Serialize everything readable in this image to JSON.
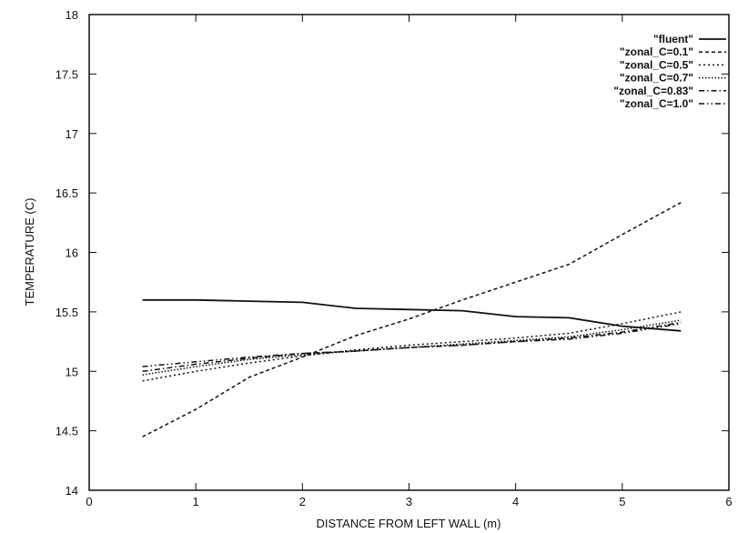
{
  "chart_data": {
    "type": "line",
    "title": "",
    "xlabel": "DISTANCE FROM LEFT WALL (m)",
    "ylabel": "TEMPERATURE (C)",
    "xlim": [
      0,
      6
    ],
    "ylim": [
      14,
      18
    ],
    "x_ticks": [
      0,
      1,
      2,
      3,
      4,
      5,
      6
    ],
    "y_ticks": [
      14,
      14.5,
      15,
      15.5,
      16,
      16.5,
      17,
      17.5,
      18
    ],
    "grid": false,
    "legend_position": "top-right",
    "series": [
      {
        "name": "\"fluent\"",
        "style": "solid",
        "x": [
          0.5,
          1.0,
          1.5,
          2.0,
          2.5,
          3.0,
          3.5,
          4.0,
          4.5,
          5.0,
          5.55
        ],
        "y": [
          15.6,
          15.6,
          15.59,
          15.58,
          15.53,
          15.52,
          15.51,
          15.46,
          15.45,
          15.38,
          15.34
        ]
      },
      {
        "name": "\"zonal_C=0.1\"",
        "style": "dashed",
        "x": [
          0.5,
          1.0,
          1.5,
          2.0,
          2.5,
          3.0,
          3.5,
          4.0,
          4.5,
          5.0,
          5.55
        ],
        "y": [
          14.45,
          14.68,
          14.95,
          15.12,
          15.3,
          15.44,
          15.6,
          15.75,
          15.9,
          16.15,
          16.42
        ]
      },
      {
        "name": "\"zonal_C=0.5\"",
        "style": "dotted",
        "x": [
          0.5,
          1.0,
          1.5,
          2.0,
          2.5,
          3.0,
          3.5,
          4.0,
          4.5,
          5.0,
          5.55
        ],
        "y": [
          14.92,
          15.0,
          15.07,
          15.13,
          15.18,
          15.22,
          15.25,
          15.28,
          15.32,
          15.4,
          15.5
        ]
      },
      {
        "name": "\"zonal_C=0.7\"",
        "style": "dense-dotted",
        "x": [
          0.5,
          1.0,
          1.5,
          2.0,
          2.5,
          3.0,
          3.5,
          4.0,
          4.5,
          5.0,
          5.55
        ],
        "y": [
          14.97,
          15.04,
          15.1,
          15.14,
          15.17,
          15.2,
          15.23,
          15.26,
          15.29,
          15.35,
          15.43
        ]
      },
      {
        "name": "\"zonal_C=0.83\"",
        "style": "dash-dot",
        "x": [
          0.5,
          1.0,
          1.5,
          2.0,
          2.5,
          3.0,
          3.5,
          4.0,
          4.5,
          5.0,
          5.55
        ],
        "y": [
          15.0,
          15.06,
          15.11,
          15.15,
          15.17,
          15.2,
          15.22,
          15.25,
          15.28,
          15.33,
          15.41
        ]
      },
      {
        "name": "\"zonal_C=1.0\"",
        "style": "dash-dot-dot",
        "x": [
          0.5,
          1.0,
          1.5,
          2.0,
          2.5,
          3.0,
          3.5,
          4.0,
          4.5,
          5.0,
          5.55
        ],
        "y": [
          15.04,
          15.08,
          15.12,
          15.15,
          15.17,
          15.2,
          15.22,
          15.25,
          15.27,
          15.32,
          15.4
        ]
      }
    ]
  }
}
